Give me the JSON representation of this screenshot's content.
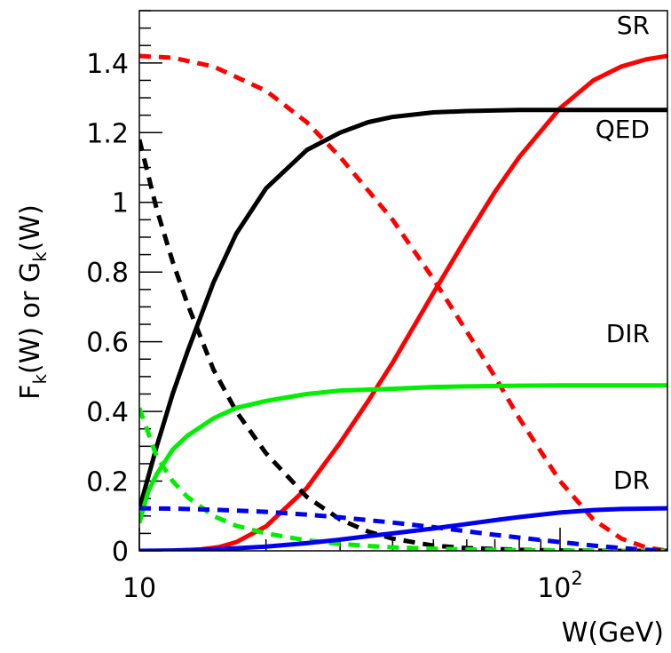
{
  "chart_data": {
    "type": "line",
    "xlabel": "W(GeV)",
    "ylabel_main": "F",
    "ylabel_sub1": "k",
    "ylabel_mid": "(W) or G",
    "ylabel_sub2": "k",
    "ylabel_end": "(W)",
    "xscale": "log",
    "xlim": [
      10,
      180
    ],
    "ylim": [
      0,
      1.55
    ],
    "grid": false,
    "x_tick_labels": [
      {
        "x": 10,
        "label": "10",
        "base": "",
        "exp": ""
      },
      {
        "x": 100,
        "label": "",
        "base": "10",
        "exp": "2"
      }
    ],
    "y_tick_labels": [
      {
        "y": 0,
        "label": "0"
      },
      {
        "y": 0.2,
        "label": "0.2"
      },
      {
        "y": 0.4,
        "label": "0.4"
      },
      {
        "y": 0.6,
        "label": "0.6"
      },
      {
        "y": 0.8,
        "label": "0.8"
      },
      {
        "y": 1.0,
        "label": "1"
      },
      {
        "y": 1.2,
        "label": "1.2"
      },
      {
        "y": 1.4,
        "label": "1.4"
      }
    ],
    "series": [
      {
        "label": "SR",
        "color": "#ff0000",
        "style": "solid",
        "x": [
          10,
          12,
          14,
          15.5,
          17,
          20,
          25,
          30,
          35,
          40,
          50,
          60,
          70,
          80,
          100,
          120,
          140,
          160,
          180
        ],
        "y": [
          0,
          0,
          0.004,
          0.011,
          0.025,
          0.07,
          0.18,
          0.31,
          0.43,
          0.54,
          0.74,
          0.9,
          1.03,
          1.13,
          1.27,
          1.35,
          1.39,
          1.41,
          1.42
        ]
      },
      {
        "label": "",
        "color": "#ff0000",
        "style": "dashed",
        "x": [
          10,
          12,
          15,
          20,
          25,
          30,
          40,
          50,
          60,
          70,
          80,
          100,
          120,
          140,
          160,
          180
        ],
        "y": [
          1.42,
          1.415,
          1.39,
          1.32,
          1.23,
          1.13,
          0.95,
          0.78,
          0.63,
          0.5,
          0.38,
          0.2,
          0.09,
          0.035,
          0.01,
          0
        ]
      },
      {
        "label": "QED",
        "color": "#000000",
        "style": "solid",
        "x": [
          10,
          11,
          12,
          13,
          15,
          17,
          20,
          25,
          30,
          35,
          40,
          50,
          60,
          80,
          100,
          140,
          180
        ],
        "y": [
          0.12,
          0.3,
          0.45,
          0.57,
          0.77,
          0.91,
          1.04,
          1.15,
          1.2,
          1.23,
          1.245,
          1.258,
          1.262,
          1.265,
          1.265,
          1.265,
          1.265
        ]
      },
      {
        "label": "",
        "color": "#000000",
        "style": "dashed",
        "x": [
          10,
          11,
          12,
          13,
          15,
          17,
          20,
          25,
          30,
          35,
          40,
          50,
          60,
          80,
          100,
          140,
          180
        ],
        "y": [
          1.18,
          0.98,
          0.83,
          0.71,
          0.52,
          0.4,
          0.28,
          0.155,
          0.09,
          0.055,
          0.035,
          0.015,
          0.008,
          0.003,
          0.001,
          0,
          0
        ]
      },
      {
        "label": "DIR",
        "color": "#00ee00",
        "style": "solid",
        "x": [
          10,
          10.5,
          11,
          12,
          13,
          15,
          17,
          20,
          25,
          30,
          40,
          50,
          60,
          80,
          100,
          140,
          180
        ],
        "y": [
          0.08,
          0.17,
          0.22,
          0.29,
          0.33,
          0.38,
          0.41,
          0.43,
          0.45,
          0.46,
          0.465,
          0.47,
          0.472,
          0.474,
          0.475,
          0.475,
          0.475
        ]
      },
      {
        "label": "",
        "color": "#00ee00",
        "style": "dashed",
        "x": [
          10,
          11,
          12,
          13,
          15,
          17,
          20,
          25,
          30,
          35,
          40,
          50,
          60,
          80,
          100,
          140,
          180
        ],
        "y": [
          0.41,
          0.27,
          0.2,
          0.155,
          0.1,
          0.072,
          0.05,
          0.03,
          0.02,
          0.014,
          0.01,
          0.006,
          0.004,
          0.002,
          0.001,
          0,
          0
        ]
      },
      {
        "label": "DR",
        "color": "#0000ee",
        "style": "solid",
        "x": [
          10,
          12,
          15,
          20,
          25,
          30,
          35,
          40,
          50,
          60,
          70,
          80,
          100,
          120,
          140,
          160,
          180
        ],
        "y": [
          0,
          0.001,
          0.004,
          0.012,
          0.022,
          0.032,
          0.042,
          0.05,
          0.064,
          0.077,
          0.088,
          0.097,
          0.11,
          0.117,
          0.12,
          0.121,
          0.122
        ]
      },
      {
        "label": "",
        "color": "#0000ee",
        "style": "dashed",
        "x": [
          10,
          12,
          15,
          20,
          25,
          30,
          35,
          40,
          50,
          60,
          70,
          80,
          100,
          120,
          140,
          160,
          180
        ],
        "y": [
          0.122,
          0.121,
          0.118,
          0.112,
          0.104,
          0.096,
          0.088,
          0.081,
          0.068,
          0.056,
          0.046,
          0.038,
          0.025,
          0.015,
          0.008,
          0.003,
          0
        ]
      }
    ]
  }
}
